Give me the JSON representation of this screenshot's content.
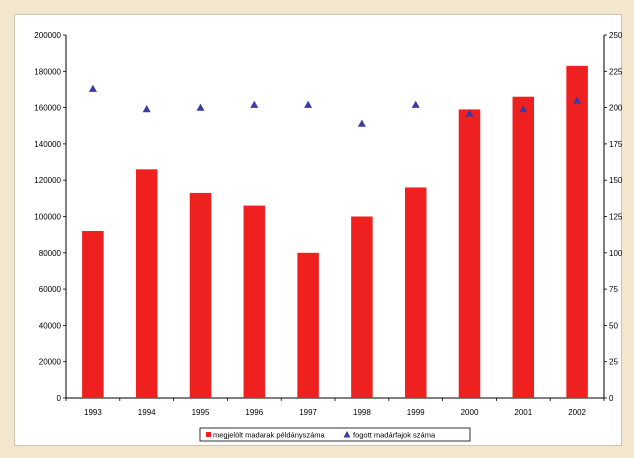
{
  "chart_data": {
    "type": "bar",
    "categories": [
      "1993",
      "1994",
      "1995",
      "1996",
      "1997",
      "1998",
      "1999",
      "2000",
      "2001",
      "2002"
    ],
    "series": [
      {
        "name": "megjelölt madarak példányszáma",
        "kind": "bar",
        "axis": "left",
        "color": "#ee2020",
        "values": [
          92000,
          126000,
          113000,
          106000,
          80000,
          100000,
          116000,
          159000,
          166000,
          183000
        ]
      },
      {
        "name": "fogott madárfajok száma",
        "kind": "marker",
        "axis": "right",
        "color": "#3a3aa8",
        "values": [
          213,
          199,
          200,
          202,
          202,
          189,
          202,
          196,
          199,
          205
        ]
      }
    ],
    "y_left": {
      "min": 0,
      "max": 200000,
      "step": 20000,
      "ticks": [
        "0",
        "20000",
        "40000",
        "60000",
        "80000",
        "100000",
        "120000",
        "140000",
        "160000",
        "180000",
        "200000"
      ]
    },
    "y_right": {
      "min": 0,
      "max": 250,
      "step": 25,
      "ticks": [
        "0",
        "25",
        "50",
        "75",
        "100",
        "125",
        "150",
        "175",
        "200",
        "225",
        "250"
      ]
    },
    "legend_position": "bottom-center",
    "grid": false
  }
}
